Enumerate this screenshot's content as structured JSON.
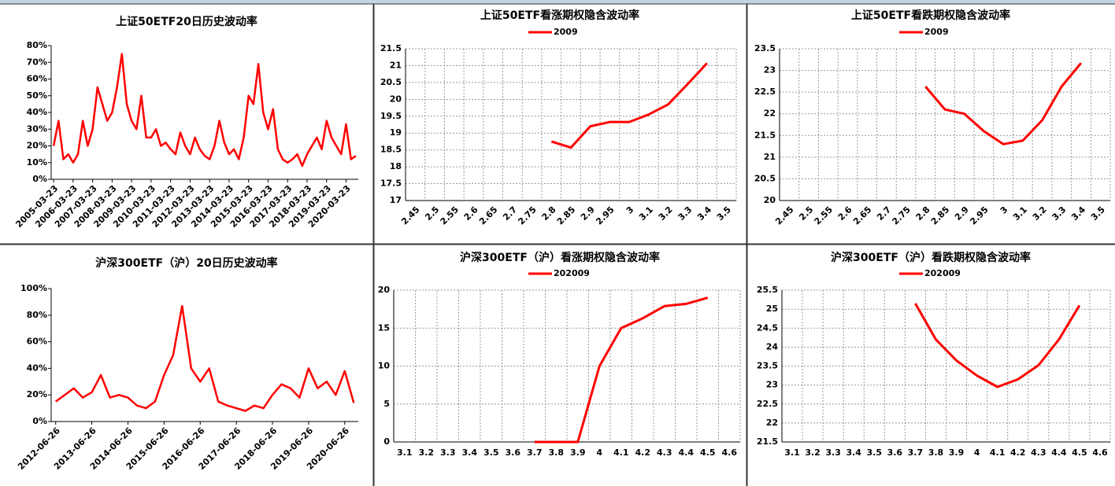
{
  "chart_data": [
    {
      "type": "line",
      "title": "上证50ETF20日历史波动率",
      "color": "#ff0000",
      "grid": false,
      "categories": [
        "2005-03-23",
        null,
        null,
        null,
        "2006-03-23",
        null,
        null,
        null,
        "2007-03-23",
        null,
        null,
        null,
        "2008-03-23",
        null,
        null,
        null,
        "2009-03-23",
        null,
        null,
        null,
        "2010-03-23",
        null,
        null,
        null,
        "2011-03-23",
        null,
        null,
        null,
        "2012-03-23",
        null,
        null,
        null,
        "2013-03-23",
        null,
        null,
        null,
        "2014-03-23",
        null,
        null,
        null,
        "2015-03-23",
        null,
        null,
        null,
        "2016-03-23",
        null,
        null,
        null,
        "2017-03-23",
        null,
        null,
        null,
        "2018-03-23",
        null,
        null,
        null,
        "2019-03-23",
        null,
        null,
        null,
        "2020-03-23",
        null,
        null
      ],
      "values": [
        20,
        35,
        12,
        15,
        10,
        15,
        35,
        20,
        30,
        55,
        45,
        35,
        40,
        55,
        75,
        45,
        35,
        30,
        50,
        25,
        25,
        30,
        20,
        22,
        18,
        15,
        28,
        20,
        15,
        25,
        18,
        14,
        12,
        20,
        35,
        22,
        15,
        18,
        12,
        25,
        50,
        45,
        69,
        40,
        30,
        42,
        18,
        12,
        10,
        12,
        15,
        8,
        15,
        20,
        25,
        18,
        35,
        25,
        20,
        15,
        33,
        12,
        14
      ],
      "ylim": [
        0,
        80
      ],
      "yticks": [
        {
          "value": 0,
          "label": "0%"
        },
        {
          "value": 10,
          "label": "10%"
        },
        {
          "value": 20,
          "label": "20%"
        },
        {
          "value": 30,
          "label": "30%"
        },
        {
          "value": 40,
          "label": "40%"
        },
        {
          "value": 50,
          "label": "50%"
        },
        {
          "value": 60,
          "label": "60%"
        },
        {
          "value": 70,
          "label": "70%"
        },
        {
          "value": 80,
          "label": "80%"
        }
      ]
    },
    {
      "type": "line",
      "title": "上证50ETF看涨期权隐含波动率",
      "grid": true,
      "categories": [
        "2.45",
        "2.5",
        "2.55",
        "2.6",
        "2.65",
        "2.7",
        "2.75",
        "2.8",
        "2.85",
        "2.9",
        "2.95",
        "3",
        "3.1",
        "3.2",
        "3.3",
        "3.4",
        "3.5"
      ],
      "series": [
        {
          "name": "2009",
          "color": "#ff0000",
          "values": [
            null,
            null,
            null,
            null,
            null,
            null,
            null,
            18.75,
            18.57,
            19.2,
            19.33,
            19.33,
            19.55,
            19.85,
            20.45,
            21.07,
            null
          ]
        }
      ],
      "ylim": [
        17,
        21.5
      ],
      "yticks": [
        17,
        17.5,
        18,
        18.5,
        19,
        19.5,
        20,
        20.5,
        21,
        21.5
      ]
    },
    {
      "type": "line",
      "title": "上证50ETF看跌期权隐含波动率",
      "grid": true,
      "categories": [
        "2.45",
        "2.5",
        "2.55",
        "2.6",
        "2.65",
        "2.7",
        "2.75",
        "2.8",
        "2.85",
        "2.9",
        "2.95",
        "3",
        "3.1",
        "3.2",
        "3.3",
        "3.4",
        "3.5"
      ],
      "series": [
        {
          "name": "2009",
          "color": "#ff0000",
          "values": [
            null,
            null,
            null,
            null,
            null,
            null,
            null,
            22.63,
            22.1,
            22.0,
            21.6,
            21.3,
            21.38,
            21.85,
            22.63,
            23.17,
            null
          ]
        }
      ],
      "ylim": [
        20,
        23.5
      ],
      "yticks": [
        20,
        20.5,
        21,
        21.5,
        22,
        22.5,
        23,
        23.5
      ]
    },
    {
      "type": "line",
      "title": "沪深300ETF（沪）20日历史波动率",
      "color": "#ff0000",
      "grid": false,
      "categories": [
        "2012-06-26",
        null,
        null,
        null,
        "2013-06-26",
        null,
        null,
        null,
        "2014-06-26",
        null,
        null,
        null,
        "2015-06-26",
        null,
        null,
        null,
        "2016-06-26",
        null,
        null,
        null,
        "2017-06-26",
        null,
        null,
        null,
        "2018-06-26",
        null,
        null,
        null,
        "2019-06-26",
        null,
        null,
        null,
        "2020-06-26",
        null
      ],
      "values": [
        15,
        20,
        25,
        18,
        22,
        35,
        18,
        20,
        18,
        12,
        10,
        15,
        35,
        50,
        87,
        40,
        30,
        40,
        15,
        12,
        10,
        8,
        12,
        10,
        20,
        28,
        25,
        18,
        40,
        25,
        30,
        20,
        38,
        14
      ],
      "ylim": [
        0,
        100
      ],
      "yticks": [
        {
          "value": 0,
          "label": "0%"
        },
        {
          "value": 20,
          "label": "20%"
        },
        {
          "value": 40,
          "label": "40%"
        },
        {
          "value": 60,
          "label": "60%"
        },
        {
          "value": 80,
          "label": "80%"
        },
        {
          "value": 100,
          "label": "100%"
        }
      ]
    },
    {
      "type": "line",
      "title": "沪深300ETF（沪）看涨期权隐含波动率",
      "grid": true,
      "categories": [
        "3.1",
        "3.2",
        "3.3",
        "3.4",
        "3.5",
        "3.6",
        "3.7",
        "3.8",
        "3.9",
        "4",
        "4.1",
        "4.2",
        "4.3",
        "4.4",
        "4.5",
        "4.6"
      ],
      "series": [
        {
          "name": "202009",
          "color": "#ff0000",
          "values": [
            null,
            null,
            null,
            null,
            null,
            null,
            0,
            0,
            0,
            10,
            15,
            16.3,
            17.9,
            18.2,
            19,
            null
          ]
        }
      ],
      "ylim": [
        0,
        20
      ],
      "yticks": [
        0,
        5,
        10,
        15,
        20
      ]
    },
    {
      "type": "line",
      "title": "沪深300ETF（沪）看跌期权隐含波动率",
      "grid": true,
      "categories": [
        "3.1",
        "3.2",
        "3.3",
        "3.4",
        "3.5",
        "3.6",
        "3.7",
        "3.8",
        "3.9",
        "4",
        "4.1",
        "4.2",
        "4.3",
        "4.4",
        "4.5",
        "4.6"
      ],
      "series": [
        {
          "name": "202009",
          "color": "#ff0000",
          "values": [
            null,
            null,
            null,
            null,
            null,
            null,
            25.15,
            24.2,
            23.65,
            23.25,
            22.95,
            23.15,
            23.52,
            24.2,
            25.1,
            null
          ]
        }
      ],
      "ylim": [
        21.5,
        25.5
      ],
      "yticks": [
        21.5,
        22,
        22.5,
        23,
        23.5,
        24,
        24.5,
        25,
        25.5
      ]
    }
  ]
}
